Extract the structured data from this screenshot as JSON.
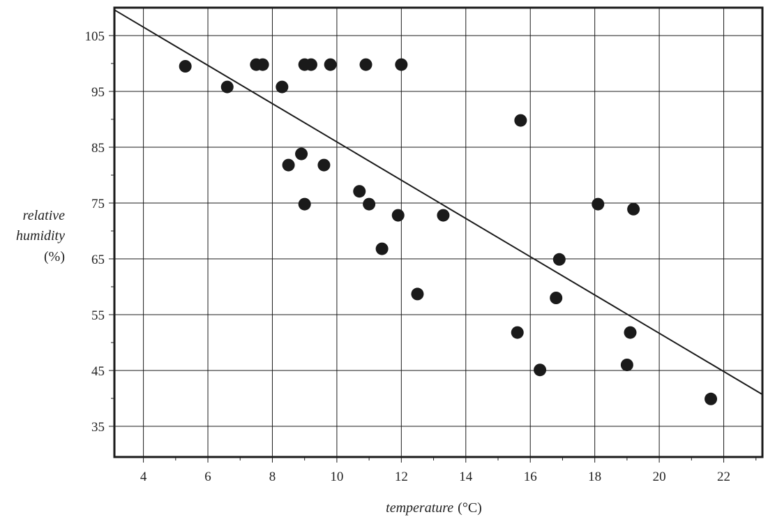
{
  "chart_data": {
    "type": "scatter",
    "xlabel": "temperature",
    "xlabel_unit": "(°C)",
    "ylabel": [
      "relative",
      "humidity",
      "(%)"
    ],
    "xlim": [
      3.1,
      23.2
    ],
    "ylim": [
      29.5,
      110
    ],
    "x_ticks": [
      4,
      6,
      8,
      10,
      12,
      14,
      16,
      18,
      20,
      22
    ],
    "y_ticks": [
      35,
      45,
      55,
      65,
      75,
      85,
      95,
      105
    ],
    "grid": true,
    "points": [
      {
        "x": 5.3,
        "y": 99.5
      },
      {
        "x": 6.6,
        "y": 95.8
      },
      {
        "x": 7.5,
        "y": 99.8
      },
      {
        "x": 7.7,
        "y": 99.8
      },
      {
        "x": 8.3,
        "y": 95.8
      },
      {
        "x": 8.5,
        "y": 81.8
      },
      {
        "x": 8.9,
        "y": 83.8
      },
      {
        "x": 9.0,
        "y": 74.8
      },
      {
        "x": 9.0,
        "y": 99.8
      },
      {
        "x": 9.2,
        "y": 99.8
      },
      {
        "x": 9.6,
        "y": 81.8
      },
      {
        "x": 9.8,
        "y": 99.8
      },
      {
        "x": 10.7,
        "y": 77.1
      },
      {
        "x": 10.9,
        "y": 99.8
      },
      {
        "x": 11.0,
        "y": 74.8
      },
      {
        "x": 11.4,
        "y": 66.8
      },
      {
        "x": 11.9,
        "y": 72.8
      },
      {
        "x": 12.0,
        "y": 99.8
      },
      {
        "x": 12.5,
        "y": 58.7
      },
      {
        "x": 13.3,
        "y": 72.8
      },
      {
        "x": 15.6,
        "y": 51.8
      },
      {
        "x": 15.7,
        "y": 89.8
      },
      {
        "x": 16.3,
        "y": 45.1
      },
      {
        "x": 16.8,
        "y": 58.0
      },
      {
        "x": 16.9,
        "y": 64.9
      },
      {
        "x": 18.1,
        "y": 74.8
      },
      {
        "x": 19.0,
        "y": 46.0
      },
      {
        "x": 19.1,
        "y": 51.8
      },
      {
        "x": 19.2,
        "y": 73.9
      },
      {
        "x": 21.6,
        "y": 39.9
      }
    ],
    "trendline": {
      "x": [
        3.1,
        23.2
      ],
      "y": [
        109.6,
        40.7
      ]
    }
  }
}
